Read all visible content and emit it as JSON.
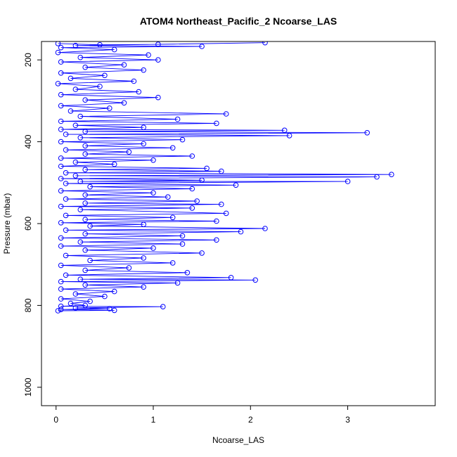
{
  "chart_data": {
    "type": "line",
    "title": "ATOM4 Northeast_Pacific_2 Ncoarse_LAS",
    "xlabel": "Ncoarse_LAS",
    "ylabel": "Pressure (mbar)",
    "xlim": [
      -0.15,
      3.9
    ],
    "ylim": [
      1045,
      155
    ],
    "y_inverted": true,
    "x_ticks": [
      0,
      1,
      2,
      3
    ],
    "y_ticks": [
      200,
      400,
      600,
      800,
      1000
    ],
    "series_color": "#0000ff",
    "marker": "open-circle",
    "grid": false,
    "series": [
      {
        "points": [
          [
            0.02,
            160
          ],
          [
            0.45,
            163
          ],
          [
            1.05,
            162
          ],
          [
            2.15,
            158
          ],
          [
            0.2,
            165
          ],
          [
            1.5,
            167
          ],
          [
            0.05,
            170
          ],
          [
            0.6,
            175
          ],
          [
            0.02,
            182
          ],
          [
            0.95,
            188
          ],
          [
            0.25,
            194
          ],
          [
            1.05,
            200
          ],
          [
            0.05,
            205
          ],
          [
            0.7,
            212
          ],
          [
            0.3,
            218
          ],
          [
            0.9,
            225
          ],
          [
            0.05,
            232
          ],
          [
            0.5,
            238
          ],
          [
            0.15,
            245
          ],
          [
            0.8,
            252
          ],
          [
            0.02,
            258
          ],
          [
            0.45,
            265
          ],
          [
            0.2,
            272
          ],
          [
            0.85,
            278
          ],
          [
            0.05,
            285
          ],
          [
            1.05,
            292
          ],
          [
            0.3,
            298
          ],
          [
            0.7,
            305
          ],
          [
            0.05,
            312
          ],
          [
            0.55,
            318
          ],
          [
            0.15,
            325
          ],
          [
            1.75,
            332
          ],
          [
            0.25,
            338
          ],
          [
            1.25,
            345
          ],
          [
            0.05,
            350
          ],
          [
            1.65,
            355
          ],
          [
            0.2,
            360
          ],
          [
            0.9,
            365
          ],
          [
            0.05,
            370
          ],
          [
            2.35,
            372
          ],
          [
            0.3,
            375
          ],
          [
            3.2,
            378
          ],
          [
            0.1,
            382
          ],
          [
            2.4,
            385
          ],
          [
            0.25,
            390
          ],
          [
            1.3,
            395
          ],
          [
            0.05,
            400
          ],
          [
            0.9,
            405
          ],
          [
            0.3,
            410
          ],
          [
            1.2,
            415
          ],
          [
            0.1,
            420
          ],
          [
            0.75,
            425
          ],
          [
            0.3,
            430
          ],
          [
            1.4,
            435
          ],
          [
            0.05,
            440
          ],
          [
            1.0,
            445
          ],
          [
            0.2,
            450
          ],
          [
            0.6,
            455
          ],
          [
            0.05,
            460
          ],
          [
            1.55,
            465
          ],
          [
            0.3,
            468
          ],
          [
            1.7,
            472
          ],
          [
            0.1,
            476
          ],
          [
            3.45,
            480
          ],
          [
            0.2,
            483
          ],
          [
            3.3,
            486
          ],
          [
            0.05,
            490
          ],
          [
            1.5,
            494
          ],
          [
            0.25,
            497
          ],
          [
            3.0,
            497
          ],
          [
            0.1,
            502
          ],
          [
            1.85,
            506
          ],
          [
            0.35,
            510
          ],
          [
            1.4,
            515
          ],
          [
            0.05,
            520
          ],
          [
            1.0,
            525
          ],
          [
            0.3,
            530
          ],
          [
            1.15,
            535
          ],
          [
            0.1,
            540
          ],
          [
            1.45,
            545
          ],
          [
            0.3,
            550
          ],
          [
            1.7,
            553
          ],
          [
            0.05,
            558
          ],
          [
            1.4,
            562
          ],
          [
            0.25,
            566
          ],
          [
            1.75,
            575
          ],
          [
            0.1,
            580
          ],
          [
            1.2,
            585
          ],
          [
            0.3,
            590
          ],
          [
            1.65,
            594
          ],
          [
            0.05,
            598
          ],
          [
            0.9,
            602
          ],
          [
            0.35,
            606
          ],
          [
            2.15,
            612
          ],
          [
            0.1,
            616
          ],
          [
            1.9,
            620
          ],
          [
            0.3,
            625
          ],
          [
            1.3,
            630
          ],
          [
            0.05,
            635
          ],
          [
            1.65,
            640
          ],
          [
            0.25,
            645
          ],
          [
            1.3,
            650
          ],
          [
            0.05,
            655
          ],
          [
            1.0,
            660
          ],
          [
            0.3,
            665
          ],
          [
            1.5,
            672
          ],
          [
            0.1,
            678
          ],
          [
            0.9,
            684
          ],
          [
            0.35,
            690
          ],
          [
            1.2,
            696
          ],
          [
            0.05,
            702
          ],
          [
            0.75,
            708
          ],
          [
            0.3,
            714
          ],
          [
            1.35,
            720
          ],
          [
            0.1,
            726
          ],
          [
            1.8,
            732
          ],
          [
            0.25,
            736
          ],
          [
            2.05,
            738
          ],
          [
            0.05,
            742
          ],
          [
            1.25,
            745
          ],
          [
            0.3,
            750
          ],
          [
            0.9,
            755
          ],
          [
            0.05,
            760
          ],
          [
            0.6,
            766
          ],
          [
            0.2,
            772
          ],
          [
            0.5,
            778
          ],
          [
            0.05,
            784
          ],
          [
            0.35,
            790
          ],
          [
            0.15,
            795
          ],
          [
            0.3,
            800
          ],
          [
            0.05,
            802
          ],
          [
            1.1,
            803
          ],
          [
            0.2,
            806
          ],
          [
            0.55,
            808
          ],
          [
            0.05,
            810
          ],
          [
            0.6,
            812
          ],
          [
            0.02,
            813
          ]
        ]
      }
    ]
  }
}
